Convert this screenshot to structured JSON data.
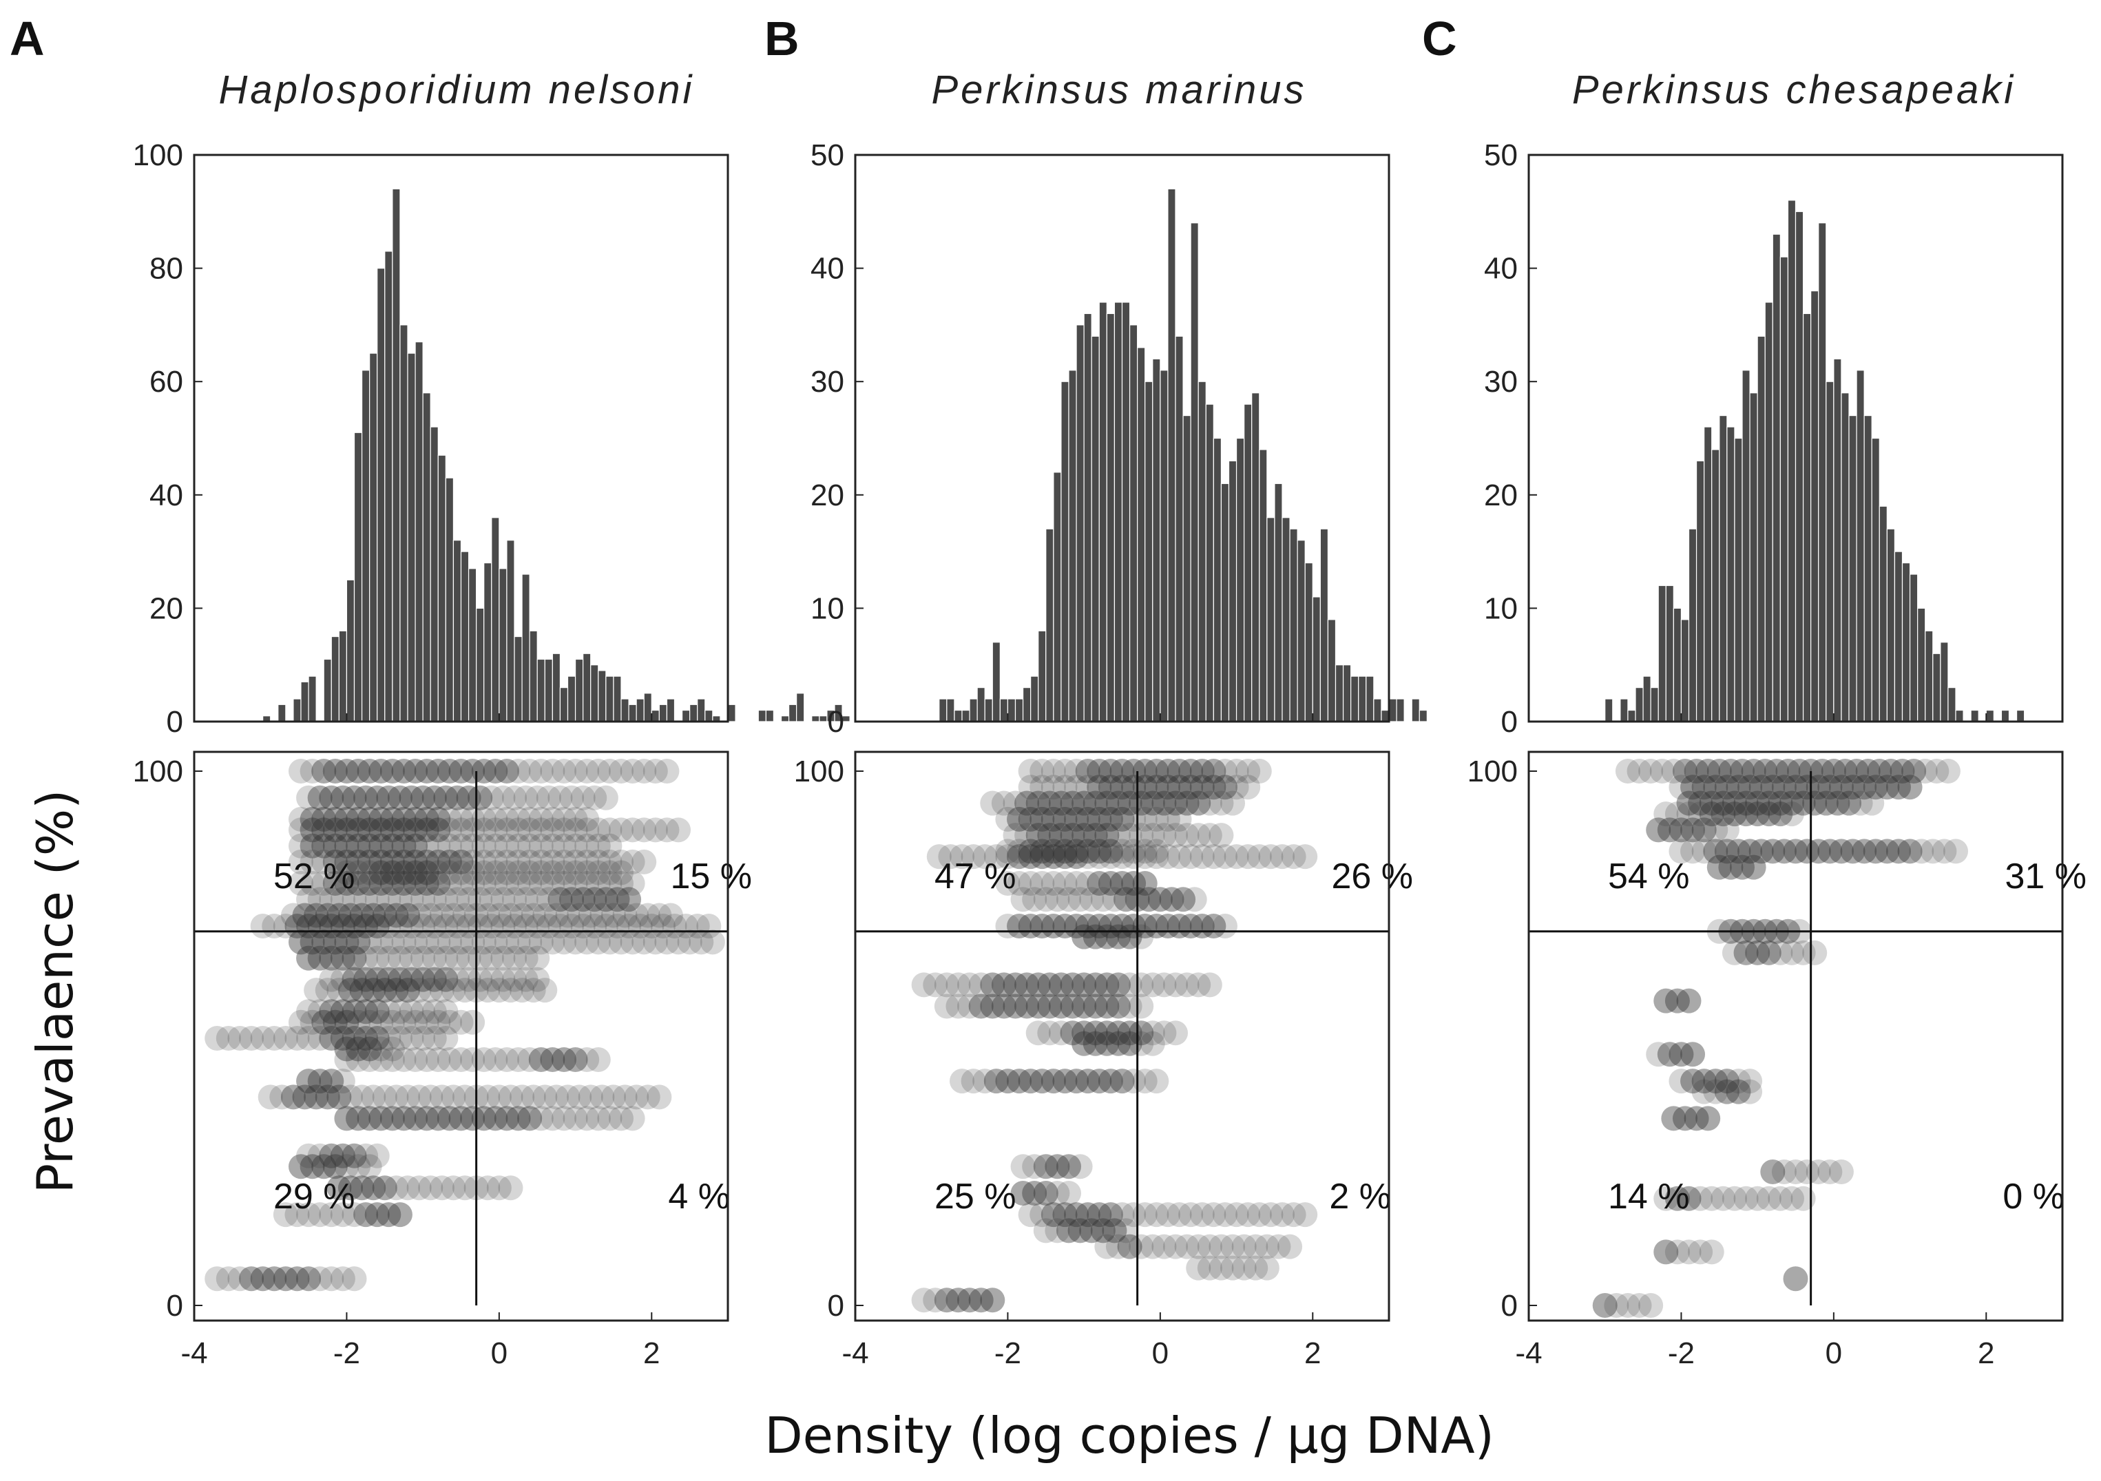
{
  "figure": {
    "shared_xlabel": "Density (log copies / µg DNA)",
    "shared_ylabel": "Prevalaence (%)"
  },
  "chart_data": [
    {
      "panel": "A",
      "type": "bar",
      "title": "Haplosporidium nelsoni",
      "xlim": [
        -4,
        3
      ],
      "ylim": [
        0,
        100
      ],
      "yticks": [
        "0",
        "20",
        "40",
        "60",
        "80",
        "100"
      ],
      "bin_start": -3.2,
      "bin_width": 0.1,
      "values": [
        0,
        1,
        0,
        3,
        0,
        4,
        7,
        8,
        0,
        11,
        15,
        16,
        25,
        51,
        62,
        65,
        80,
        83,
        94,
        70,
        65,
        67,
        58,
        52,
        47,
        43,
        32,
        30,
        27,
        20,
        28,
        36,
        27,
        32,
        15,
        26,
        16,
        11,
        11,
        12,
        6,
        8,
        11,
        12,
        10,
        9,
        8,
        8,
        4,
        3,
        4,
        5,
        2,
        3,
        4,
        0,
        2,
        3,
        4,
        2,
        1,
        0,
        3,
        0,
        0,
        0,
        2,
        2,
        0,
        1,
        3,
        5,
        0,
        1,
        1,
        2,
        3,
        1,
        0
      ],
      "bar_color": "#4a4a4a"
    },
    {
      "panel": "B",
      "type": "bar",
      "title": "Perkinsus marinus",
      "xlim": [
        -4,
        3
      ],
      "ylim": [
        0,
        50
      ],
      "yticks": [
        "0",
        "10",
        "20",
        "30",
        "40",
        "50"
      ],
      "bin_start": -2.9,
      "bin_width": 0.1,
      "values": [
        2,
        2,
        1,
        1,
        2,
        3,
        2,
        7,
        2,
        2,
        2,
        3,
        4,
        8,
        17,
        22,
        30,
        31,
        35,
        36,
        34,
        37,
        36,
        37,
        37,
        35,
        33,
        30,
        32,
        31,
        47,
        34,
        27,
        44,
        30,
        28,
        25,
        21,
        23,
        25,
        28,
        29,
        24,
        18,
        21,
        18,
        17,
        16,
        14,
        11,
        17,
        9,
        5,
        5,
        4,
        4,
        4,
        2,
        1,
        2,
        2,
        0,
        2,
        1,
        0,
        0
      ],
      "bar_color": "#4a4a4a"
    },
    {
      "panel": "C",
      "type": "bar",
      "title": "Perkinsus chesapeaki",
      "xlim": [
        -4,
        3
      ],
      "ylim": [
        0,
        50
      ],
      "yticks": [
        "0",
        "10",
        "20",
        "30",
        "40",
        "50"
      ],
      "bin_start": -3.0,
      "bin_width": 0.1,
      "values": [
        2,
        0,
        2,
        1,
        3,
        4,
        3,
        12,
        12,
        10,
        9,
        17,
        23,
        26,
        24,
        27,
        26,
        25,
        31,
        29,
        34,
        37,
        43,
        41,
        46,
        45,
        36,
        38,
        44,
        30,
        32,
        29,
        27,
        31,
        27,
        25,
        19,
        17,
        15,
        14,
        13,
        10,
        8,
        6,
        7,
        3,
        1,
        0,
        1,
        0,
        1,
        0,
        1,
        0,
        1
      ],
      "bar_color": "#4a4a4a"
    },
    {
      "panel": "A",
      "type": "scatter",
      "xlim": [
        -4,
        3
      ],
      "ylim": [
        0,
        100
      ],
      "yticks": [
        "0",
        "100"
      ],
      "density_threshold": -0.3,
      "prevalence_threshold": 70,
      "quadrant_labels": {
        "top_left": "52 %",
        "top_right": "15 %",
        "bottom_left": "29 %",
        "bottom_right": "4 %"
      },
      "rows": [
        {
          "y": 100,
          "x_min": -2.6,
          "x_max": 2.3,
          "core": [
            -2.4,
            0.2
          ]
        },
        {
          "y": 95,
          "x_min": -2.5,
          "x_max": 1.5,
          "core": [
            -2.4,
            -0.2
          ]
        },
        {
          "y": 91,
          "x_min": -2.6,
          "x_max": 1.2,
          "core": [
            -2.5,
            -0.8
          ]
        },
        {
          "y": 89,
          "x_min": -2.6,
          "x_max": 2.4,
          "core": [
            -2.5,
            -0.8
          ]
        },
        {
          "y": 86,
          "x_min": -2.6,
          "x_max": 1.5,
          "core": [
            -2.5,
            -1.0
          ]
        },
        {
          "y": 83,
          "x_min": -2.6,
          "x_max": 2.0,
          "core": [
            -2.2,
            -0.5
          ]
        },
        {
          "y": 81,
          "x_min": -2.0,
          "x_max": 1.6,
          "core": [
            -1.6,
            -0.9
          ]
        },
        {
          "y": 79,
          "x_min": -2.6,
          "x_max": 1.8,
          "core": [
            -2.2,
            -0.8
          ]
        },
        {
          "y": 76,
          "x_min": -2.5,
          "x_max": 1.8,
          "core": [
            0.8,
            1.7
          ]
        },
        {
          "y": 73,
          "x_min": -2.7,
          "x_max": 2.3,
          "core": [
            -2.6,
            -1.2
          ]
        },
        {
          "y": 71,
          "x_min": -3.1,
          "x_max": 2.8,
          "core": [
            -2.7,
            -1.5
          ]
        },
        {
          "y": 68,
          "x_min": -2.6,
          "x_max": 2.9,
          "core": [
            -2.6,
            -1.8
          ]
        },
        {
          "y": 65,
          "x_min": -2.5,
          "x_max": 0.5,
          "core": [
            -2.5,
            -1.9
          ]
        },
        {
          "y": 61,
          "x_min": -2.2,
          "x_max": 0.6,
          "core": [
            -1.9,
            -0.7
          ]
        },
        {
          "y": 59,
          "x_min": -2.4,
          "x_max": 0.7,
          "core": [
            -2.0,
            -1.2
          ]
        },
        {
          "y": 55,
          "x_min": -2.5,
          "x_max": -0.7,
          "core": [
            -2.2,
            -1.6
          ]
        },
        {
          "y": 53,
          "x_min": -2.6,
          "x_max": -0.3,
          "core": [
            -2.3,
            -1.9
          ]
        },
        {
          "y": 50,
          "x_min": -3.7,
          "x_max": -0.7,
          "core": [
            -2.2,
            -1.6
          ]
        },
        {
          "y": 48,
          "x_min": -2.0,
          "x_max": -1.4,
          "core": [
            -2.0,
            -1.6
          ]
        },
        {
          "y": 46,
          "x_min": -2.0,
          "x_max": 1.3,
          "core": [
            0.5,
            1.1
          ]
        },
        {
          "y": 42,
          "x_min": -2.5,
          "x_max": -2.0,
          "core": [
            -2.5,
            -2.2
          ]
        },
        {
          "y": 39,
          "x_min": -3.0,
          "x_max": 2.2,
          "core": [
            -2.7,
            -2.1
          ]
        },
        {
          "y": 35,
          "x_min": -2.0,
          "x_max": 1.8,
          "core": [
            -2.0,
            0.5
          ]
        },
        {
          "y": 28,
          "x_min": -2.5,
          "x_max": -1.5,
          "core": [
            -2.2,
            -1.8
          ]
        },
        {
          "y": 26,
          "x_min": -2.6,
          "x_max": -1.6,
          "core": [
            -2.6,
            -2.1
          ]
        },
        {
          "y": 22,
          "x_min": -2.1,
          "x_max": 0.2,
          "core": [
            -2.1,
            -1.4
          ]
        },
        {
          "y": 17,
          "x_min": -2.8,
          "x_max": -1.3,
          "core": [
            -1.8,
            -1.3
          ]
        },
        {
          "y": 5,
          "x_min": -3.7,
          "x_max": -1.8,
          "core": [
            -3.3,
            -2.4
          ]
        }
      ]
    },
    {
      "panel": "B",
      "type": "scatter",
      "xlim": [
        -4,
        3
      ],
      "ylim": [
        0,
        100
      ],
      "yticks": [
        "0",
        "100"
      ],
      "density_threshold": -0.3,
      "prevalence_threshold": 70,
      "quadrant_labels": {
        "top_left": "47 %",
        "top_right": "26 %",
        "bottom_left": "25 %",
        "bottom_right": "2 %"
      },
      "rows": [
        {
          "y": 100,
          "x_min": -1.7,
          "x_max": 1.3,
          "core": [
            -1.0,
            0.8
          ]
        },
        {
          "y": 97,
          "x_min": -1.7,
          "x_max": 1.2,
          "core": [
            -0.8,
            0.9
          ]
        },
        {
          "y": 94,
          "x_min": -2.2,
          "x_max": 1.0,
          "core": [
            -1.8,
            0.6
          ]
        },
        {
          "y": 91,
          "x_min": -2.0,
          "x_max": 0.3,
          "core": [
            -1.9,
            -0.5
          ]
        },
        {
          "y": 88,
          "x_min": -1.9,
          "x_max": 0.8,
          "core": [
            -1.7,
            -0.6
          ]
        },
        {
          "y": 85,
          "x_min": -2.0,
          "x_max": 0.0,
          "core": [
            -1.8,
            -0.6
          ]
        },
        {
          "y": 84,
          "x_min": -2.9,
          "x_max": 1.9,
          "core": [
            -1.9,
            -1.1
          ]
        },
        {
          "y": 79,
          "x_min": -2.0,
          "x_max": -0.1,
          "core": [
            -0.8,
            -0.1
          ]
        },
        {
          "y": 76,
          "x_min": -1.8,
          "x_max": 0.5,
          "core": [
            -0.5,
            0.3
          ]
        },
        {
          "y": 71,
          "x_min": -2.0,
          "x_max": 0.9,
          "core": [
            -1.9,
            0.8
          ]
        },
        {
          "y": 69,
          "x_min": -1.0,
          "x_max": -0.2,
          "core": [
            -1.0,
            -0.4
          ]
        },
        {
          "y": 60,
          "x_min": -3.1,
          "x_max": 0.7,
          "core": [
            -2.2,
            -0.5
          ]
        },
        {
          "y": 56,
          "x_min": -2.8,
          "x_max": -0.2,
          "core": [
            -2.4,
            -0.5
          ]
        },
        {
          "y": 51,
          "x_min": -1.6,
          "x_max": 0.3,
          "core": [
            -1.2,
            -0.2
          ]
        },
        {
          "y": 49,
          "x_min": -1.0,
          "x_max": 0.0,
          "core": [
            -1.0,
            -0.3
          ]
        },
        {
          "y": 42,
          "x_min": -2.6,
          "x_max": 0.0,
          "core": [
            -2.2,
            -0.4
          ]
        },
        {
          "y": 26,
          "x_min": -1.8,
          "x_max": -1.0,
          "core": [
            -1.6,
            -1.2
          ]
        },
        {
          "y": 21,
          "x_min": -1.8,
          "x_max": -1.2,
          "core": [
            -1.8,
            -1.5
          ]
        },
        {
          "y": 17,
          "x_min": -1.7,
          "x_max": 1.9,
          "core": [
            -1.5,
            -0.6
          ]
        },
        {
          "y": 14,
          "x_min": -1.5,
          "x_max": -0.4,
          "core": [
            -1.2,
            -0.6
          ]
        },
        {
          "y": 11,
          "x_min": -0.7,
          "x_max": 1.8,
          "core": [
            -0.4,
            -0.4
          ]
        },
        {
          "y": 7,
          "x_min": 0.5,
          "x_max": 1.5,
          "core": [
            0.6,
            0.6
          ]
        },
        {
          "y": 1,
          "x_min": -3.1,
          "x_max": -2.2,
          "core": [
            -2.8,
            -2.2
          ]
        }
      ]
    },
    {
      "panel": "C",
      "type": "scatter",
      "xlim": [
        -4,
        3
      ],
      "ylim": [
        0,
        100
      ],
      "yticks": [
        "0",
        "100"
      ],
      "density_threshold": -0.3,
      "prevalence_threshold": 70,
      "quadrant_labels": {
        "top_left": "54 %",
        "top_right": "31 %",
        "bottom_left": "14 %",
        "bottom_right": "0 %"
      },
      "rows": [
        {
          "y": 100,
          "x_min": -2.7,
          "x_max": 1.5,
          "core": [
            -2.0,
            1.1
          ]
        },
        {
          "y": 97,
          "x_min": -2.0,
          "x_max": 1.1,
          "core": [
            -1.9,
            1.0
          ]
        },
        {
          "y": 94,
          "x_min": -1.9,
          "x_max": 0.5,
          "core": [
            -1.9,
            0.3
          ]
        },
        {
          "y": 92,
          "x_min": -2.2,
          "x_max": -0.5,
          "core": [
            -1.7,
            -0.6
          ]
        },
        {
          "y": 89,
          "x_min": -2.3,
          "x_max": -1.4,
          "core": [
            -2.3,
            -1.6
          ]
        },
        {
          "y": 85,
          "x_min": -2.0,
          "x_max": 1.7,
          "core": [
            -1.6,
            1.0
          ]
        },
        {
          "y": 82,
          "x_min": -1.5,
          "x_max": -1.0,
          "core": [
            -1.5,
            -1.0
          ]
        },
        {
          "y": 70,
          "x_min": -1.5,
          "x_max": -0.4,
          "core": [
            -1.4,
            -0.6
          ]
        },
        {
          "y": 66,
          "x_min": -1.3,
          "x_max": -0.2,
          "core": [
            -1.2,
            -0.8
          ]
        },
        {
          "y": 57,
          "x_min": -2.2,
          "x_max": -1.8,
          "core": [
            -2.2,
            -1.8
          ]
        },
        {
          "y": 47,
          "x_min": -2.3,
          "x_max": -1.8,
          "core": [
            -2.2,
            -1.8
          ]
        },
        {
          "y": 42,
          "x_min": -2.0,
          "x_max": -1.0,
          "core": [
            -1.9,
            -1.3
          ]
        },
        {
          "y": 40,
          "x_min": -1.7,
          "x_max": -1.1,
          "core": [
            -1.5,
            -1.2
          ]
        },
        {
          "y": 35,
          "x_min": -2.1,
          "x_max": -1.6,
          "core": [
            -2.1,
            -1.6
          ]
        },
        {
          "y": 25,
          "x_min": -0.8,
          "x_max": 0.1,
          "core": [
            -0.8,
            -0.8
          ]
        },
        {
          "y": 20,
          "x_min": -2.2,
          "x_max": -0.3,
          "core": [
            -2.1,
            -1.9
          ]
        },
        {
          "y": 10,
          "x_min": -2.2,
          "x_max": -1.5,
          "core": [
            -2.2,
            -2.2
          ]
        },
        {
          "y": 5,
          "x_min": -0.5,
          "x_max": -0.5,
          "core": [
            -0.5,
            -0.5
          ]
        },
        {
          "y": 0,
          "x_min": -3.0,
          "x_max": -2.4,
          "core": [
            -3.0,
            -3.0
          ]
        }
      ]
    }
  ],
  "shared_xticks": [
    "-4",
    "-2",
    "0",
    "2"
  ]
}
